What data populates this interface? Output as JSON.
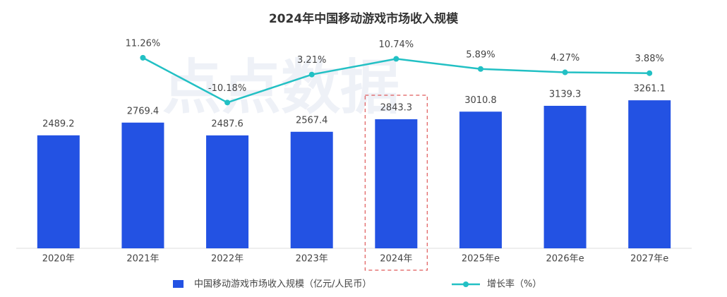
{
  "chart_data": {
    "type": "bar-line",
    "title": "2024年中国移动游戏市场收入规模",
    "watermark": "点点数据",
    "categories": [
      "2020年",
      "2021年",
      "2022年",
      "2023年",
      "2024年",
      "2025年e",
      "2026年e",
      "2027年e"
    ],
    "series": [
      {
        "name": "中国移动游戏市场收入规模（亿元/人民币）",
        "type": "bar",
        "color": "#2352e3",
        "values": [
          2489.2,
          2769.4,
          2487.6,
          2567.4,
          2843.3,
          3010.8,
          3139.3,
          3261.1
        ]
      },
      {
        "name": "增长率（%）",
        "type": "line",
        "axis": "y2",
        "color": "#22c0c4",
        "values": [
          null,
          11.26,
          -10.18,
          3.21,
          10.74,
          5.89,
          4.27,
          3.88
        ],
        "value_labels": [
          null,
          "11.26%",
          "-10.18%",
          "3.21%",
          "10.74%",
          "5.89%",
          "4.27%",
          "3.88%"
        ]
      }
    ],
    "ylim": [
      0,
      4600
    ],
    "y2lim": [
      -80,
      20
    ],
    "highlight": 4,
    "grid": false
  }
}
